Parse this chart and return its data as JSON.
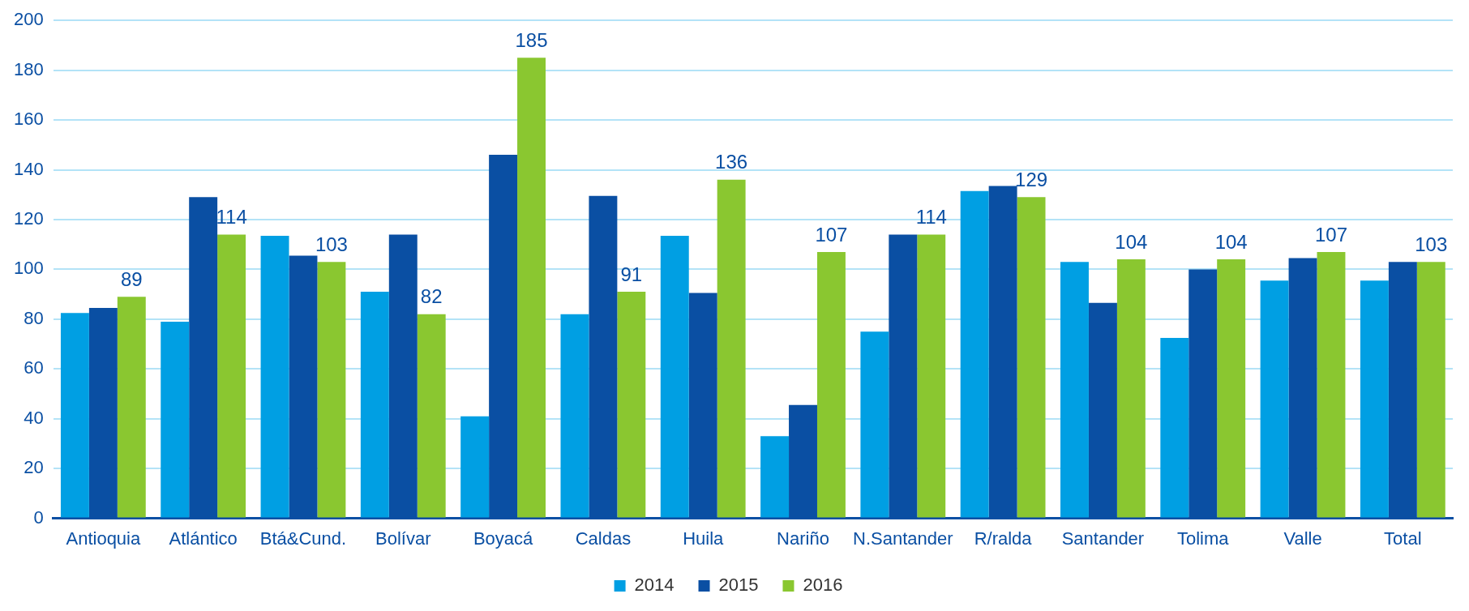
{
  "chart_data": {
    "type": "bar",
    "categories": [
      "Antioquia",
      "Atlántico",
      "Btá&Cund.",
      "Bolívar",
      "Boyacá",
      "Caldas",
      "Huila",
      "Nariño",
      "N.Santander",
      "R/ralda",
      "Santander",
      "Tolima",
      "Valle",
      "Total"
    ],
    "series": [
      {
        "name": "2014",
        "color": "#009fe3",
        "values": [
          82.5,
          79,
          113.5,
          91,
          41,
          82,
          113.5,
          33,
          75,
          131.5,
          103,
          72.5,
          95.5,
          95.5
        ]
      },
      {
        "name": "2015",
        "color": "#0a4fa3",
        "values": [
          84.5,
          129,
          105.5,
          114,
          146,
          129.5,
          90.5,
          45.5,
          114,
          133.5,
          86.5,
          100,
          104.5,
          103
        ]
      },
      {
        "name": "2016",
        "color": "#8ac730",
        "values": [
          89,
          114,
          103,
          82,
          185,
          91,
          136,
          107,
          114,
          129,
          104,
          104,
          107,
          103
        ],
        "value_labels": [
          "89",
          "114",
          "103",
          "82",
          "185",
          "91",
          "136",
          "107",
          "114",
          "129",
          "104",
          "104",
          "107",
          "103"
        ]
      }
    ],
    "ylim": [
      0,
      200
    ],
    "yticks": [
      0,
      20,
      40,
      60,
      80,
      100,
      120,
      140,
      160,
      180,
      200
    ],
    "grid": "y",
    "legend": "bottom"
  }
}
